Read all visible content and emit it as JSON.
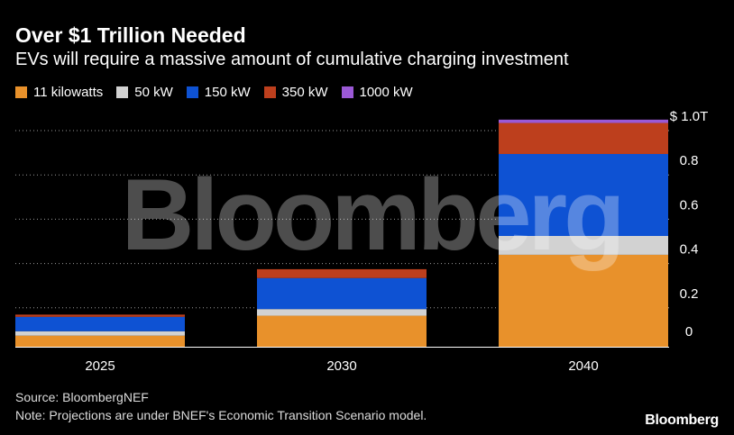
{
  "header": {
    "title": "Over $1 Trillion Needed",
    "subtitle": "EVs will require a massive amount of cumulative charging investment"
  },
  "watermark": "Bloomberg",
  "chart_data": {
    "type": "bar",
    "stacked": true,
    "categories": [
      "2025",
      "2030",
      "2040"
    ],
    "series": [
      {
        "name": "11 kilowatts",
        "color": "#e8912b",
        "values": [
          0.05,
          0.14,
          0.415
        ]
      },
      {
        "name": "50 kW",
        "color": "#d2d2d2",
        "values": [
          0.02,
          0.03,
          0.085
        ]
      },
      {
        "name": "150 kW",
        "color": "#0e52d3",
        "values": [
          0.065,
          0.14,
          0.37
        ]
      },
      {
        "name": "350 kW",
        "color": "#bd3f1d",
        "values": [
          0.01,
          0.04,
          0.14
        ]
      },
      {
        "name": "1000 kW",
        "color": "#9b59d6",
        "values": [
          0.0,
          0.0,
          0.015
        ]
      }
    ],
    "ylim": [
      0,
      1.0
    ],
    "yticks": [
      0,
      0.2,
      0.4,
      0.6,
      0.8,
      1.0
    ],
    "ytick_labels": [
      "0",
      "0.2",
      "0.4",
      "0.6",
      "0.8",
      "$ 1.0T"
    ],
    "grid": true,
    "legend_position": "top-left"
  },
  "footer": {
    "source": "Source: BloombergNEF",
    "note": "Note: Projections are under BNEF's Economic Transition Scenario model.",
    "brand": "Bloomberg"
  }
}
